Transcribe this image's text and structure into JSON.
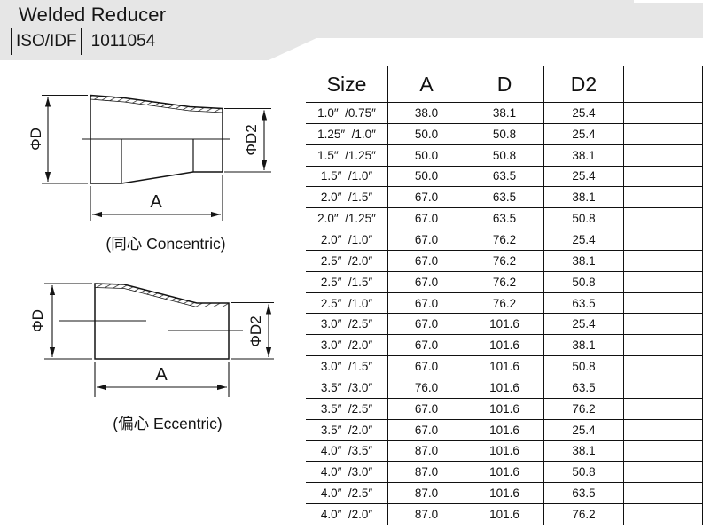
{
  "header": {
    "title": "Welded Reducer",
    "standard": "ISO/IDF",
    "code": "1011054"
  },
  "diagrams": {
    "concentric": {
      "caption": "(同心 Concentric)",
      "dim_d_label": "ΦD",
      "dim_d2_label": "ΦD2",
      "dim_a_label": "A"
    },
    "eccentric": {
      "caption": "(偏心 Eccentric)",
      "dim_d_label": "ΦD",
      "dim_d2_label": "ΦD2",
      "dim_a_label": "A"
    }
  },
  "table": {
    "columns": [
      "Size",
      "A",
      "D",
      "D2",
      ""
    ],
    "rows": [
      {
        "size": "1.0″  /0.75″",
        "a": "38.0",
        "d": "38.1",
        "d2": "25.4",
        "blank": ""
      },
      {
        "size": "1.25″  /1.0″",
        "a": "50.0",
        "d": "50.8",
        "d2": "25.4",
        "blank": ""
      },
      {
        "size": "1.5″  /1.25″",
        "a": "50.0",
        "d": "50.8",
        "d2": "38.1",
        "blank": ""
      },
      {
        "size": "1.5″  /1.0″",
        "a": "50.0",
        "d": "63.5",
        "d2": "25.4",
        "blank": ""
      },
      {
        "size": "2.0″  /1.5″",
        "a": "67.0",
        "d": "63.5",
        "d2": "38.1",
        "blank": ""
      },
      {
        "size": "2.0″  /1.25″",
        "a": "67.0",
        "d": "63.5",
        "d2": "50.8",
        "blank": ""
      },
      {
        "size": "2.0″  /1.0″",
        "a": "67.0",
        "d": "76.2",
        "d2": "25.4",
        "blank": ""
      },
      {
        "size": "2.5″  /2.0″",
        "a": "67.0",
        "d": "76.2",
        "d2": "38.1",
        "blank": ""
      },
      {
        "size": "2.5″  /1.5″",
        "a": "67.0",
        "d": "76.2",
        "d2": "50.8",
        "blank": ""
      },
      {
        "size": "2.5″  /1.0″",
        "a": "67.0",
        "d": "76.2",
        "d2": "63.5",
        "blank": ""
      },
      {
        "size": "3.0″  /2.5″",
        "a": "67.0",
        "d": "101.6",
        "d2": "25.4",
        "blank": ""
      },
      {
        "size": "3.0″  /2.0″",
        "a": "67.0",
        "d": "101.6",
        "d2": "38.1",
        "blank": ""
      },
      {
        "size": "3.0″  /1.5″",
        "a": "67.0",
        "d": "101.6",
        "d2": "50.8",
        "blank": ""
      },
      {
        "size": "3.5″  /3.0″",
        "a": "76.0",
        "d": "101.6",
        "d2": "63.5",
        "blank": ""
      },
      {
        "size": "3.5″  /2.5″",
        "a": "67.0",
        "d": "101.6",
        "d2": "76.2",
        "blank": ""
      },
      {
        "size": "3.5″  /2.0″",
        "a": "67.0",
        "d": "101.6",
        "d2": "25.4",
        "blank": ""
      },
      {
        "size": "4.0″  /3.5″",
        "a": "87.0",
        "d": "101.6",
        "d2": "38.1",
        "blank": ""
      },
      {
        "size": "4.0″  /3.0″",
        "a": "87.0",
        "d": "101.6",
        "d2": "50.8",
        "blank": ""
      },
      {
        "size": "4.0″  /2.5″",
        "a": "87.0",
        "d": "101.6",
        "d2": "63.5",
        "blank": ""
      },
      {
        "size": "4.0″  /2.0″",
        "a": "87.0",
        "d": "101.6",
        "d2": "76.2",
        "blank": ""
      }
    ]
  },
  "colors": {
    "banner_bg": "#e6e6e6",
    "line": "#111111",
    "text": "#141414"
  }
}
